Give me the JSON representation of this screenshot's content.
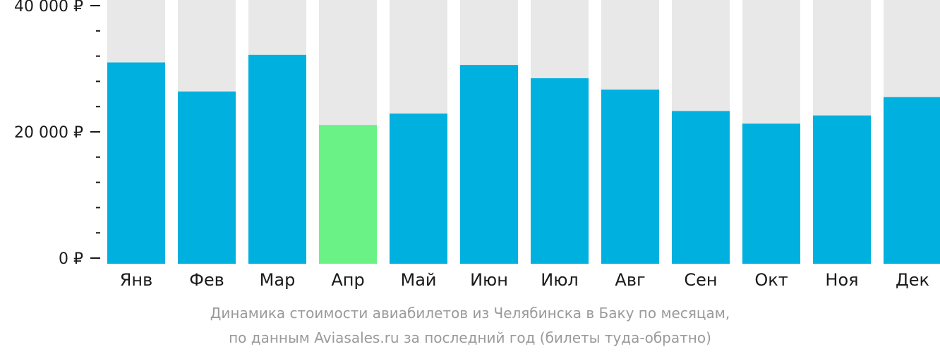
{
  "chart_data": {
    "type": "bar",
    "categories": [
      "Янв",
      "Фев",
      "Мар",
      "Апр",
      "Май",
      "Июн",
      "Июл",
      "Авг",
      "Сен",
      "Окт",
      "Ноя",
      "Дек"
    ],
    "values": [
      31000,
      26400,
      32200,
      21100,
      22900,
      30600,
      28500,
      26700,
      23300,
      21300,
      22600,
      25500
    ],
    "ylim": [
      0,
      40000
    ],
    "yticks": [
      {
        "value": 40000,
        "label": "40 000 ₽"
      },
      {
        "value": 20000,
        "label": "20 000 ₽"
      },
      {
        "value": 0,
        "label": "0 ₽"
      }
    ],
    "minor_tick_step": 4000,
    "highlight_index": 3,
    "colors": {
      "bar": "#00b0de",
      "highlight": "#6af286",
      "background_bar": "#e8e8e8",
      "axis": "#1a1a1a"
    },
    "xlabel": "",
    "ylabel": "",
    "grid": false,
    "legend": "none"
  },
  "caption": {
    "line1": "Динамика стоимости авиабилетов из Челябинска в Баку по месяцам,",
    "line2": "по данным Aviasales.ru за последний год (билеты туда-обратно)"
  }
}
